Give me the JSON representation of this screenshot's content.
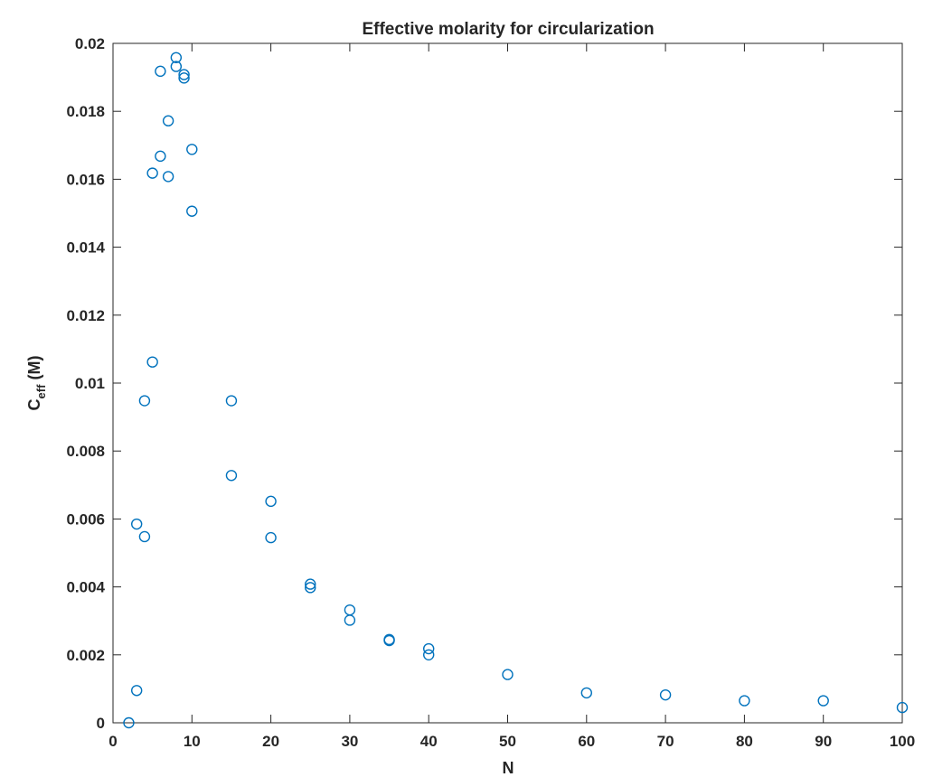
{
  "chart_data": {
    "type": "scatter",
    "title": "Effective molarity for circularization",
    "xlabel": "N",
    "ylabel_main": "C",
    "ylabel_sub": "eff",
    "ylabel_unit": " (M)",
    "xlim": [
      0,
      100
    ],
    "ylim": [
      0,
      0.02
    ],
    "x_ticks": [
      0,
      10,
      20,
      30,
      40,
      50,
      60,
      70,
      80,
      90,
      100
    ],
    "y_ticks": [
      0,
      0.002,
      0.004,
      0.006,
      0.008,
      0.01,
      0.012,
      0.014,
      0.016,
      0.018,
      0.02
    ],
    "x_tick_labels": [
      "0",
      "10",
      "20",
      "30",
      "40",
      "50",
      "60",
      "70",
      "80",
      "90",
      "100"
    ],
    "y_tick_labels": [
      "0",
      "0.002",
      "0.004",
      "0.006",
      "0.008",
      "0.01",
      "0.012",
      "0.014",
      "0.016",
      "0.018",
      "0.02"
    ],
    "grid": false,
    "marker": "circle-open",
    "marker_color": "#0072BD",
    "series": [
      {
        "x": [
          2,
          3,
          3,
          4,
          4,
          5,
          5,
          6,
          6,
          7,
          7,
          8,
          8,
          9,
          9,
          10,
          10,
          15,
          15,
          20,
          20,
          25,
          25,
          30,
          30,
          35,
          35,
          40,
          40,
          50,
          60,
          70,
          80,
          90,
          100
        ],
        "y": [
          0.0,
          0.00095,
          0.00585,
          0.00548,
          0.00948,
          0.01062,
          0.01618,
          0.01668,
          0.01918,
          0.01608,
          0.01772,
          0.01932,
          0.01958,
          0.01898,
          0.01908,
          0.01506,
          0.01688,
          0.00728,
          0.00948,
          0.00545,
          0.00652,
          0.00398,
          0.00408,
          0.00302,
          0.00332,
          0.00242,
          0.00245,
          0.002,
          0.00218,
          0.00142,
          0.00088,
          0.00082,
          0.00065,
          0.00065,
          0.00045
        ]
      }
    ]
  }
}
